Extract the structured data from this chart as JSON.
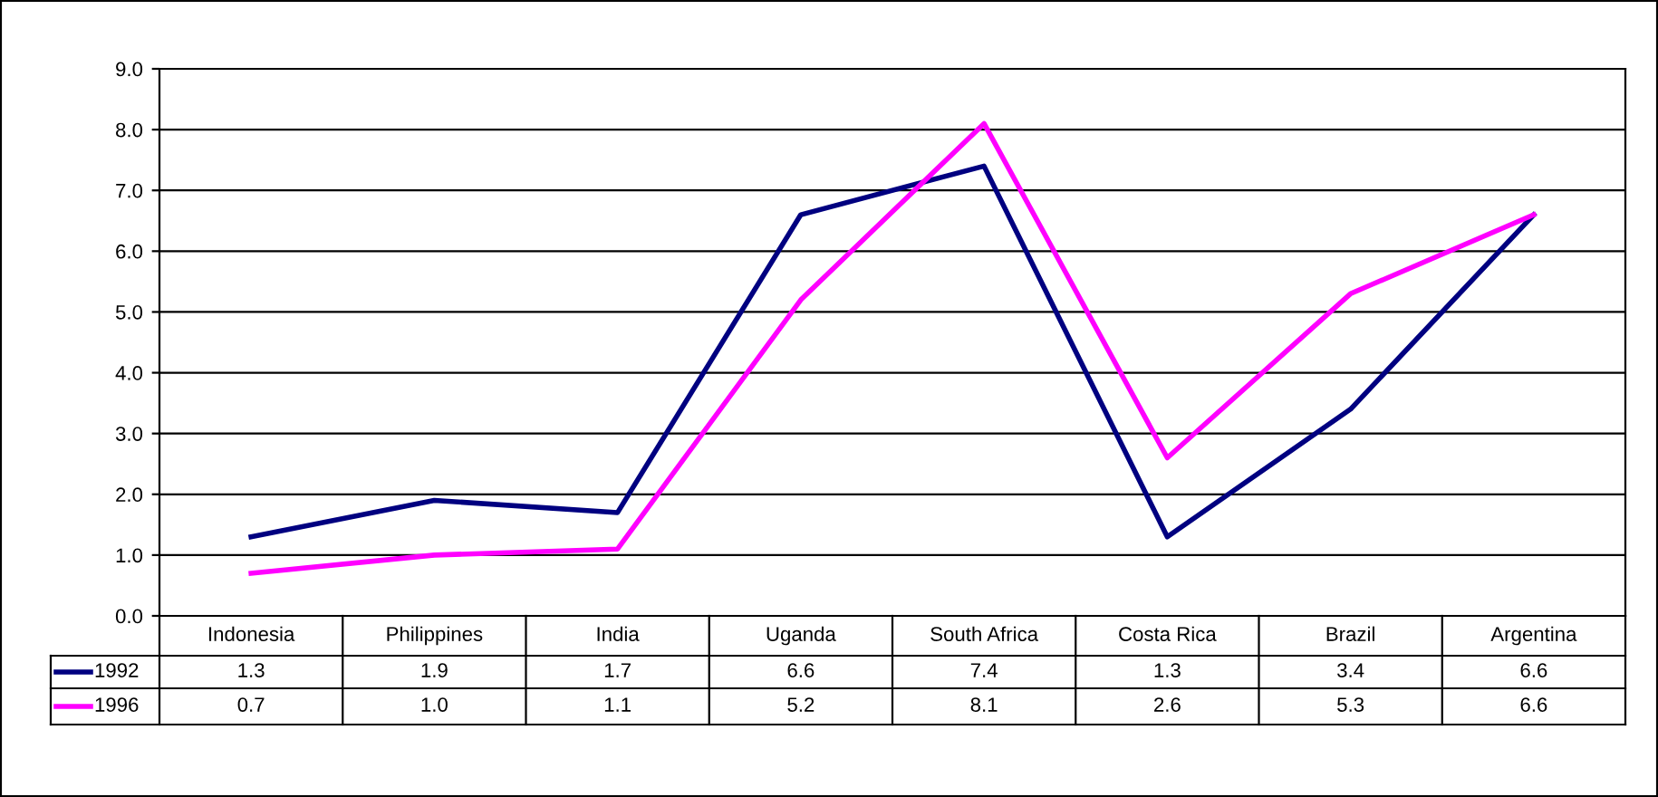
{
  "chart_data": {
    "type": "line",
    "categories": [
      "Indonesia",
      "Philippines",
      "India",
      "Uganda",
      "South Africa",
      "Costa Rica",
      "Brazil",
      "Argentina"
    ],
    "series": [
      {
        "name": "1992",
        "color": "#000080",
        "values": [
          1.3,
          1.9,
          1.7,
          6.6,
          7.4,
          1.3,
          3.4,
          6.6
        ],
        "value_labels": [
          "1.3",
          "1.9",
          "1.7",
          "6.6",
          "7.4",
          "1.3",
          "3.4",
          "6.6"
        ]
      },
      {
        "name": "1996",
        "color": "#ff00ff",
        "values": [
          0.7,
          1.0,
          1.1,
          5.2,
          8.1,
          2.6,
          5.3,
          6.6
        ],
        "value_labels": [
          "0.7",
          "1.0",
          "1.1",
          "5.2",
          "8.1",
          "2.6",
          "5.3",
          "6.6"
        ]
      }
    ],
    "ylim": [
      0,
      9
    ],
    "yticks": [
      {
        "value": 0,
        "label": "0.0"
      },
      {
        "value": 1,
        "label": "1.0"
      },
      {
        "value": 2,
        "label": "2.0"
      },
      {
        "value": 3,
        "label": "3.0"
      },
      {
        "value": 4,
        "label": "4.0"
      },
      {
        "value": 5,
        "label": "5.0"
      },
      {
        "value": 6,
        "label": "6.0"
      },
      {
        "value": 7,
        "label": "7.0"
      },
      {
        "value": 8,
        "label": "8.0"
      },
      {
        "value": 9,
        "label": "9.0"
      }
    ],
    "grid": "y",
    "legend": "bottom",
    "marker": "none",
    "line_style": "solid"
  }
}
